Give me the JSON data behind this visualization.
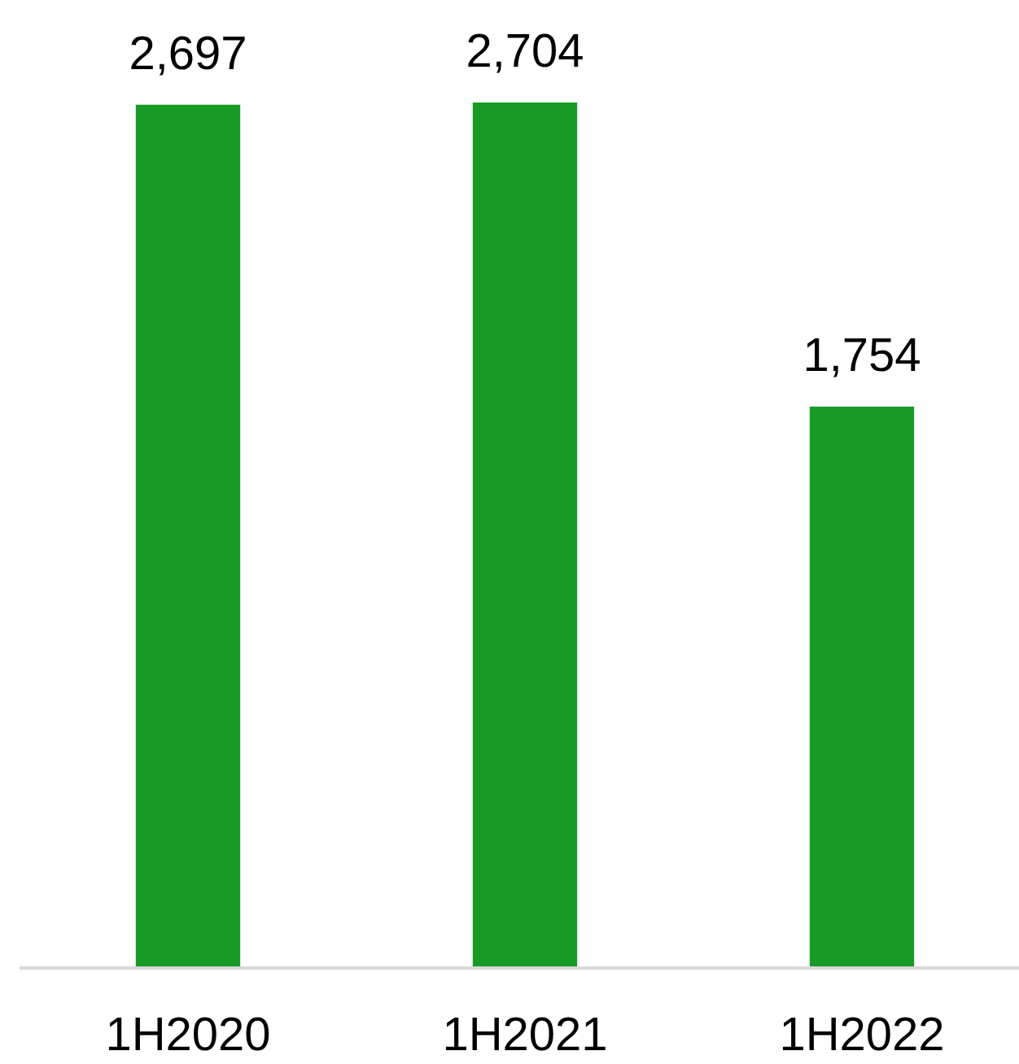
{
  "chart_data": {
    "type": "bar",
    "categories": [
      "1H2020",
      "1H2021",
      "1H2022"
    ],
    "values": [
      2697,
      2704,
      1754
    ],
    "value_labels": [
      "2,697",
      "2,704",
      "1,754"
    ],
    "color": "#189b26",
    "grid": false
  }
}
